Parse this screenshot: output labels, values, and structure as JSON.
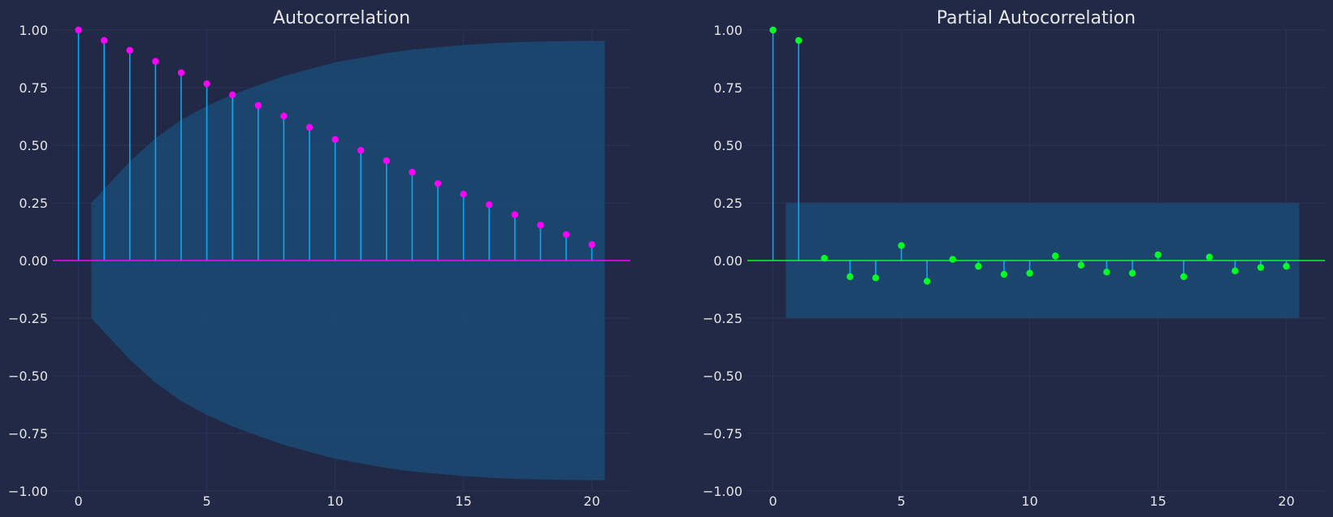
{
  "colors": {
    "background": "#212946",
    "grid": "#2A3459",
    "stem": "#08A8F0",
    "confidence_band": "#1A4A74",
    "acf_marker": "#FF00FF",
    "pacf_marker": "#00FF22",
    "text": "#E6E6E6"
  },
  "chart_data": [
    {
      "type": "stem",
      "title": "Autocorrelation",
      "xlabel": "",
      "ylabel": "",
      "x": [
        0,
        1,
        2,
        3,
        4,
        5,
        6,
        7,
        8,
        9,
        10,
        11,
        12,
        13,
        14,
        15,
        16,
        17,
        18,
        19,
        20
      ],
      "values": [
        1.0,
        0.955,
        0.912,
        0.864,
        0.815,
        0.767,
        0.719,
        0.673,
        0.627,
        0.578,
        0.525,
        0.478,
        0.433,
        0.383,
        0.334,
        0.288,
        0.242,
        0.199,
        0.154,
        0.113,
        0.069
      ],
      "confidence_band": {
        "x": [
          0.5,
          1,
          2,
          3,
          4,
          5,
          6,
          7,
          8,
          9,
          10,
          11,
          12,
          13,
          14,
          15,
          16,
          17,
          18,
          19,
          20,
          20.5
        ],
        "upper": [
          0.25,
          0.31,
          0.43,
          0.53,
          0.61,
          0.67,
          0.72,
          0.76,
          0.8,
          0.83,
          0.86,
          0.88,
          0.9,
          0.915,
          0.925,
          0.935,
          0.942,
          0.947,
          0.95,
          0.952,
          0.953,
          0.953
        ]
      },
      "xlim": [
        -1,
        21.5
      ],
      "ylim": [
        -1.0,
        1.0
      ],
      "xticks": [
        0,
        5,
        10,
        15,
        20
      ],
      "yticks": [
        1.0,
        0.75,
        0.5,
        0.25,
        0.0,
        -0.25,
        -0.5,
        -0.75,
        -1.0
      ],
      "ytick_labels": [
        "1.00",
        "0.75",
        "0.50",
        "0.25",
        "0.00",
        "−0.25",
        "−0.50",
        "−0.75",
        "−1.00"
      ],
      "xtick_labels": [
        "0",
        "5",
        "10",
        "15",
        "20"
      ],
      "grid": true,
      "marker_color": "#FF00FF"
    },
    {
      "type": "stem",
      "title": "Partial Autocorrelation",
      "xlabel": "",
      "ylabel": "",
      "x": [
        0,
        1,
        2,
        3,
        4,
        5,
        6,
        7,
        8,
        9,
        10,
        11,
        12,
        13,
        14,
        15,
        16,
        17,
        18,
        19,
        20
      ],
      "values": [
        1.0,
        0.955,
        0.01,
        -0.07,
        -0.075,
        0.065,
        -0.09,
        0.005,
        -0.025,
        -0.06,
        -0.055,
        0.02,
        -0.02,
        -0.05,
        -0.055,
        0.025,
        -0.07,
        0.015,
        -0.045,
        -0.03,
        -0.025
      ],
      "confidence_band": {
        "x": [
          0.5,
          20.5
        ],
        "upper": [
          0.25,
          0.25
        ]
      },
      "xlim": [
        -1,
        21.5
      ],
      "ylim": [
        -1.0,
        1.0
      ],
      "xticks": [
        0,
        5,
        10,
        15,
        20
      ],
      "yticks": [
        1.0,
        0.75,
        0.5,
        0.25,
        0.0,
        -0.25,
        -0.5,
        -0.75,
        -1.0
      ],
      "ytick_labels": [
        "1.00",
        "0.75",
        "0.50",
        "0.25",
        "0.00",
        "−0.25",
        "−0.50",
        "−0.75",
        "−1.00"
      ],
      "xtick_labels": [
        "0",
        "5",
        "10",
        "15",
        "20"
      ],
      "grid": true,
      "marker_color": "#00FF22"
    }
  ]
}
